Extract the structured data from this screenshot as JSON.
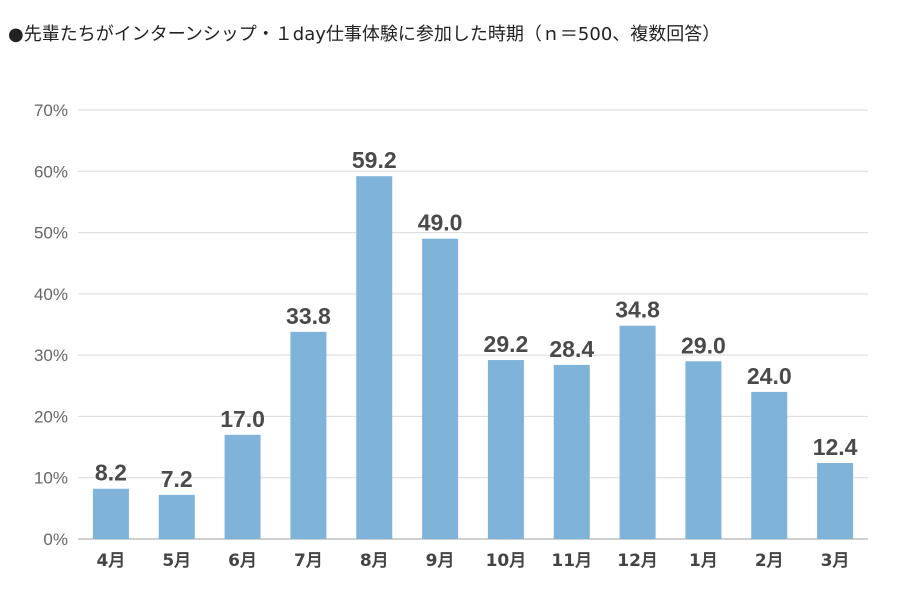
{
  "chart_data": {
    "type": "bar",
    "title": "●先輩たちがインターンシップ・１day仕事体験に参加した時期（ｎ＝500、複数回答）",
    "xlabel": "",
    "ylabel": "",
    "categories": [
      "4月",
      "5月",
      "6月",
      "7月",
      "8月",
      "9月",
      "10月",
      "11月",
      "12月",
      "1月",
      "2月",
      "3月"
    ],
    "values": [
      8.2,
      7.2,
      17.0,
      33.8,
      59.2,
      49.0,
      29.2,
      28.4,
      34.8,
      29.0,
      24.0,
      12.4
    ],
    "data_labels": [
      "8.2",
      "7.2",
      "17.0",
      "33.8",
      "59.2",
      "49.0",
      "29.2",
      "28.4",
      "34.8",
      "29.0",
      "24.0",
      "12.4"
    ],
    "ylim": [
      0,
      70
    ],
    "yticks": [
      0,
      10,
      20,
      30,
      40,
      50,
      60,
      70
    ],
    "ytick_labels": [
      "0%",
      "10%",
      "20%",
      "30%",
      "40%",
      "50%",
      "60%",
      "70%"
    ],
    "grid": true,
    "legend": "none",
    "bar_color": "#7fb3da"
  }
}
